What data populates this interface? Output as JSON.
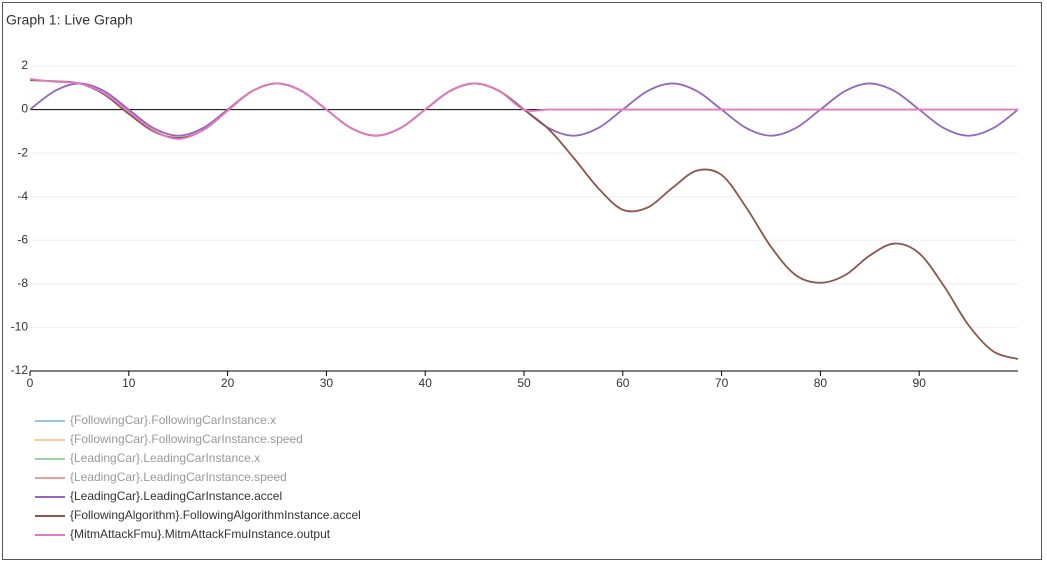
{
  "chart_data": {
    "type": "line",
    "title": "Graph 1: Live Graph",
    "x": [
      0,
      2.5,
      5,
      7.5,
      10,
      12.5,
      15,
      17.5,
      20,
      22.5,
      25,
      27.5,
      30,
      32.5,
      35,
      37.5,
      40,
      42.5,
      45,
      47.5,
      50,
      52.5,
      55,
      57.5,
      60,
      62.5,
      65,
      67.5,
      70,
      72.5,
      75,
      77.5,
      80,
      82.5,
      85,
      87.5,
      90,
      92.5,
      95,
      97.5,
      100
    ],
    "series": [
      {
        "name": "{FollowingCar}.FollowingCarInstance.x",
        "color": "#1f77b4",
        "hidden": true
      },
      {
        "name": "{FollowingCar}.FollowingCarInstance.speed",
        "color": "#ff7f0e",
        "hidden": true
      },
      {
        "name": "{LeadingCar}.LeadingCarInstance.x",
        "color": "#2ca02c",
        "hidden": true
      },
      {
        "name": "{LeadingCar}.LeadingCarInstance.speed",
        "color": "#d62728",
        "hidden": true
      },
      {
        "name": "{LeadingCar}.LeadingCarInstance.accel",
        "color": "#9467bd",
        "values": [
          0,
          0.85,
          1.2,
          0.85,
          0,
          -0.85,
          -1.2,
          -0.85,
          0,
          0.85,
          1.2,
          0.85,
          0,
          -0.85,
          -1.2,
          -0.85,
          0,
          0.85,
          1.2,
          0.85,
          0,
          -0.85,
          -1.2,
          -0.85,
          0,
          0.85,
          1.2,
          0.85,
          0,
          -0.85,
          -1.2,
          -0.85,
          0,
          0.85,
          1.2,
          0.85,
          0,
          -0.85,
          -1.2,
          -0.85,
          0
        ]
      },
      {
        "name": "{FollowingAlgorithm}.FollowingAlgorithmInstance.accel",
        "color": "#8c564b",
        "values": [
          1.35,
          1.3,
          1.2,
          0.7,
          -0.2,
          -1.0,
          -1.3,
          -0.95,
          -0.05,
          0.85,
          1.2,
          0.85,
          0,
          -0.85,
          -1.2,
          -0.85,
          0,
          0.85,
          1.2,
          0.85,
          0,
          -0.9,
          -2.2,
          -3.6,
          -4.6,
          -4.5,
          -3.6,
          -2.8,
          -3.0,
          -4.5,
          -6.3,
          -7.6,
          -7.95,
          -7.6,
          -6.7,
          -6.15,
          -6.6,
          -8.1,
          -9.9,
          -11.1,
          -11.45
        ]
      },
      {
        "name": "{MitmAttackFmu}.MitmAttackFmuInstance.output",
        "color": "#e377c2",
        "values": [
          1.4,
          1.28,
          1.2,
          0.75,
          -0.1,
          -0.95,
          -1.35,
          -0.95,
          -0.05,
          0.85,
          1.2,
          0.85,
          0,
          -0.85,
          -1.2,
          -0.85,
          0,
          0.85,
          1.2,
          0.85,
          0,
          0,
          0,
          0,
          0,
          0,
          0,
          0,
          0,
          0,
          0,
          0,
          0,
          0,
          0,
          0,
          0,
          0,
          0,
          0,
          0
        ]
      }
    ],
    "xlim": [
      0,
      100
    ],
    "xticks": [
      0,
      10,
      20,
      30,
      40,
      50,
      60,
      70,
      80,
      90
    ],
    "ylim": [
      -12,
      2
    ],
    "yticks": [
      -12,
      -10,
      -8,
      -6,
      -4,
      -2,
      0,
      2
    ],
    "grid": true
  }
}
